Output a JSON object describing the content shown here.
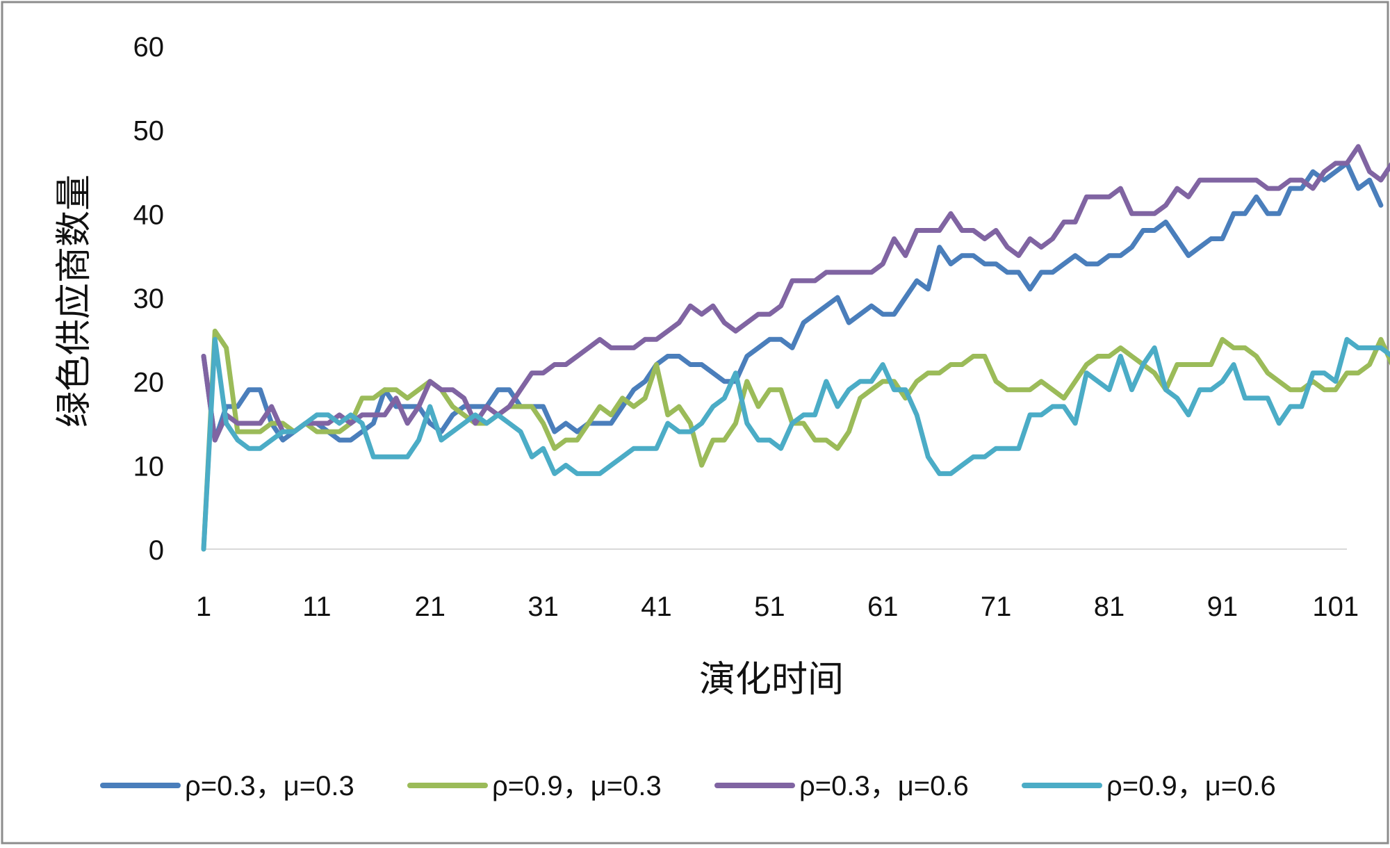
{
  "chart_data": {
    "type": "line",
    "title": "",
    "xlabel": "演化时间",
    "ylabel": "绿色供应商数量",
    "ylim": [
      0,
      60
    ],
    "xlim": [
      1,
      102
    ],
    "y_ticks": [
      0,
      10,
      20,
      30,
      40,
      50,
      60
    ],
    "x_ticks": [
      1,
      11,
      21,
      31,
      41,
      51,
      61,
      71,
      81,
      91,
      101
    ],
    "grid": false,
    "legend_position": "bottom",
    "x_start": 1,
    "series": [
      {
        "name": "ρ=0.3，μ=0.3",
        "color": "#4a7ebb",
        "values": [
          23,
          13,
          17,
          17,
          19,
          19,
          15,
          13,
          14,
          15,
          15,
          14,
          13,
          13,
          14,
          15,
          19,
          17,
          17,
          17,
          15,
          14,
          16,
          17,
          17,
          17,
          19,
          19,
          17,
          17,
          17,
          14,
          15,
          14,
          15,
          15,
          15,
          17,
          19,
          20,
          22,
          23,
          23,
          22,
          22,
          21,
          20,
          20,
          23,
          24,
          25,
          25,
          24,
          27,
          28,
          29,
          30,
          27,
          28,
          29,
          28,
          28,
          30,
          32,
          31,
          36,
          34,
          35,
          35,
          34,
          34,
          33,
          33,
          31,
          33,
          33,
          34,
          35,
          34,
          34,
          35,
          35,
          36,
          38,
          38,
          39,
          37,
          35,
          36,
          37,
          37,
          40,
          40,
          42,
          40,
          40,
          43,
          43,
          45,
          44,
          45,
          46,
          43,
          44,
          41
        ]
      },
      {
        "name": "ρ=0.9，μ=0.3",
        "color": "#9bbb59",
        "values": [
          0,
          26,
          24,
          14,
          14,
          14,
          15,
          15,
          14,
          15,
          14,
          14,
          14,
          15,
          18,
          18,
          19,
          19,
          18,
          19,
          20,
          19,
          17,
          16,
          15,
          15,
          16,
          17,
          17,
          17,
          15,
          12,
          13,
          13,
          15,
          17,
          16,
          18,
          17,
          18,
          22,
          16,
          17,
          15,
          10,
          13,
          13,
          15,
          20,
          17,
          19,
          19,
          15,
          15,
          13,
          13,
          12,
          14,
          18,
          19,
          20,
          20,
          18,
          20,
          21,
          21,
          22,
          22,
          23,
          23,
          20,
          19,
          19,
          19,
          20,
          19,
          18,
          20,
          22,
          23,
          23,
          24,
          23,
          22,
          21,
          19,
          22,
          22,
          22,
          22,
          25,
          24,
          24,
          23,
          21,
          20,
          19,
          19,
          20,
          19,
          19,
          21,
          21,
          22,
          25,
          22,
          23
        ]
      },
      {
        "name": "ρ=0.3，μ=0.6",
        "color": "#8064a2",
        "values": [
          23,
          13,
          16,
          15,
          15,
          15,
          17,
          14,
          14,
          15,
          15,
          15,
          16,
          15,
          16,
          16,
          16,
          18,
          15,
          17,
          20,
          19,
          19,
          18,
          15,
          17,
          16,
          17,
          19,
          21,
          21,
          22,
          22,
          23,
          24,
          25,
          24,
          24,
          24,
          25,
          25,
          26,
          27,
          29,
          28,
          29,
          27,
          26,
          27,
          28,
          28,
          29,
          32,
          32,
          32,
          33,
          33,
          33,
          33,
          33,
          34,
          37,
          35,
          38,
          38,
          38,
          40,
          38,
          38,
          37,
          38,
          36,
          35,
          37,
          36,
          37,
          39,
          39,
          42,
          42,
          42,
          43,
          40,
          40,
          40,
          41,
          43,
          42,
          44,
          44,
          44,
          44,
          44,
          44,
          43,
          43,
          44,
          44,
          43,
          45,
          46,
          46,
          48,
          45,
          44,
          46,
          45
        ]
      },
      {
        "name": "ρ=0.9，μ=0.6",
        "color": "#4bacc6",
        "values": [
          0,
          25,
          15,
          13,
          12,
          12,
          13,
          14,
          14,
          15,
          16,
          16,
          15,
          16,
          15,
          11,
          11,
          11,
          11,
          13,
          17,
          13,
          14,
          15,
          16,
          15,
          16,
          15,
          14,
          11,
          12,
          9,
          10,
          9,
          9,
          9,
          10,
          11,
          12,
          12,
          12,
          15,
          14,
          14,
          15,
          17,
          18,
          21,
          15,
          13,
          13,
          12,
          15,
          16,
          16,
          20,
          17,
          19,
          20,
          20,
          22,
          19,
          19,
          16,
          11,
          9,
          9,
          10,
          11,
          11,
          12,
          12,
          12,
          16,
          16,
          17,
          17,
          15,
          21,
          20,
          19,
          23,
          19,
          22,
          24,
          19,
          18,
          16,
          19,
          19,
          20,
          22,
          18,
          18,
          18,
          15,
          17,
          17,
          21,
          21,
          20,
          25,
          24,
          24,
          24,
          23
        ]
      }
    ]
  }
}
